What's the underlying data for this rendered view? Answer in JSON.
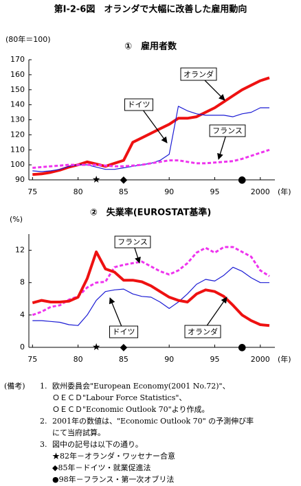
{
  "title": "第Ⅰ-2-6図　オランダで大幅に改善した雇用動向",
  "chart_data": [
    {
      "type": "line",
      "title": "①　雇用者数",
      "ylabel": "(80年＝100)",
      "xlabel": "(年)",
      "x": [
        1975,
        1976,
        1977,
        1978,
        1979,
        1980,
        1981,
        1982,
        1983,
        1984,
        1985,
        1986,
        1987,
        1988,
        1989,
        1990,
        1991,
        1992,
        1993,
        1994,
        1995,
        1996,
        1997,
        1998,
        1999,
        2000,
        2001
      ],
      "xlim": [
        1974.6,
        2001.6
      ],
      "xticks": [
        {
          "value": 1975,
          "label": "75"
        },
        {
          "value": 1980,
          "label": "80"
        },
        {
          "value": 1985,
          "label": "85"
        },
        {
          "value": 1990,
          "label": "90"
        },
        {
          "value": 1995,
          "label": "95"
        },
        2000
      ],
      "ylim": [
        90,
        170
      ],
      "yticks": [
        90,
        100,
        110,
        120,
        130,
        140,
        150,
        160,
        170
      ],
      "grid": false,
      "series": [
        {
          "name": "オランダ",
          "color": "#ee1111",
          "width": 4,
          "dashed": false,
          "values": [
            93.5,
            94,
            95,
            96.5,
            98.5,
            100,
            102,
            100.5,
            99,
            101,
            103,
            115,
            118,
            121,
            124,
            127,
            131,
            131,
            132,
            135,
            138,
            142,
            146,
            150,
            153,
            156,
            158
          ]
        },
        {
          "name": "ドイツ",
          "color": "#1a1ad4",
          "width": 1.2,
          "dashed": false,
          "values": [
            96,
            95.5,
            96,
            97,
            99,
            100,
            100,
            98.5,
            97,
            97,
            98,
            99,
            100,
            101,
            103,
            107,
            139,
            136,
            134,
            133,
            133,
            133,
            132,
            134,
            135,
            138,
            138
          ]
        },
        {
          "name": "フランス",
          "color": "#ee33ee",
          "width": 3,
          "dashed": true,
          "values": [
            98,
            98.5,
            99,
            99.5,
            100,
            100,
            100,
            100,
            99.5,
            99,
            99,
            99.5,
            100,
            101,
            102,
            103,
            103,
            102,
            101,
            101,
            101.5,
            102,
            102.5,
            104,
            106,
            108,
            110
          ]
        }
      ],
      "markers": [
        {
          "x": 1982,
          "symbol": "★"
        },
        {
          "x": 1985,
          "symbol": "◆"
        },
        {
          "x": 1998,
          "symbol": "●"
        }
      ]
    },
    {
      "type": "line",
      "title": "②　失業率(EUROSTAT基準)",
      "ylabel": "(%)",
      "xlabel": "(年)",
      "x": [
        1975,
        1976,
        1977,
        1978,
        1979,
        1980,
        1981,
        1982,
        1983,
        1984,
        1985,
        1986,
        1987,
        1988,
        1989,
        1990,
        1991,
        1992,
        1993,
        1994,
        1995,
        1996,
        1997,
        1998,
        1999,
        2000,
        2001
      ],
      "xlim": [
        1974.6,
        2001.6
      ],
      "xticks": [
        {
          "value": 1975,
          "label": "75"
        },
        {
          "value": 1980,
          "label": "80"
        },
        {
          "value": 1985,
          "label": "85"
        },
        {
          "value": 1990,
          "label": "90"
        },
        {
          "value": 1995,
          "label": "95"
        },
        2000
      ],
      "ylim": [
        0,
        14
      ],
      "yticks": [
        0,
        4,
        8,
        12
      ],
      "grid": false,
      "series": [
        {
          "name": "フランス",
          "color": "#ee33ee",
          "width": 3,
          "dashed": true,
          "values": [
            4.0,
            4.4,
            5.0,
            5.2,
            5.9,
            6.3,
            7.4,
            8.0,
            8.1,
            9.9,
            10.2,
            10.4,
            10.6,
            10.0,
            9.4,
            9.0,
            9.5,
            10.4,
            11.7,
            12.3,
            11.7,
            12.4,
            12.4,
            11.8,
            11.2,
            9.5,
            8.8
          ]
        },
        {
          "name": "ドイツ",
          "color": "#1a1ad4",
          "width": 1.2,
          "dashed": false,
          "values": [
            3.3,
            3.3,
            3.2,
            3.1,
            2.8,
            2.7,
            4.0,
            5.8,
            6.9,
            7.1,
            7.2,
            6.6,
            6.3,
            6.2,
            5.6,
            4.8,
            5.6,
            6.6,
            7.8,
            8.4,
            8.2,
            8.9,
            9.9,
            9.4,
            8.6,
            8.0,
            8.0
          ]
        },
        {
          "name": "オランダ",
          "color": "#ee1111",
          "width": 4,
          "dashed": false,
          "values": [
            5.5,
            5.8,
            5.6,
            5.6,
            5.7,
            6.2,
            8.5,
            11.8,
            9.7,
            9.3,
            8.3,
            8.3,
            8.1,
            7.6,
            6.9,
            6.2,
            5.8,
            5.6,
            6.6,
            7.1,
            6.9,
            6.3,
            5.2,
            4.0,
            3.3,
            2.8,
            2.7
          ]
        }
      ],
      "markers": [
        {
          "x": 1982,
          "symbol": "★"
        },
        {
          "x": 1985,
          "symbol": "◆"
        },
        {
          "x": 1998,
          "symbol": "●"
        }
      ]
    }
  ],
  "notes": {
    "label": "(備考)",
    "items": [
      {
        "num": "1.",
        "lines": [
          "欧州委員会\"European Economy(2001 No.72)\"、",
          "ＯＥＣＤ\"Labour Force Statistics\"、",
          "ＯＥＣＤ\"Economic Outlook 70\"より作成。"
        ]
      },
      {
        "num": "2.",
        "lines": [
          "2001年の数値は、\"Economic Outlook 70\" の予測伸び率",
          "にて当府試算。"
        ]
      },
      {
        "num": "3.",
        "lines": [
          "図中の記号は以下の通り。",
          "★82年－オランダ・ワッセナー合意",
          "◆85年－ドイツ・就業促進法",
          "●98年－フランス・第一次オブリ法"
        ]
      }
    ]
  }
}
